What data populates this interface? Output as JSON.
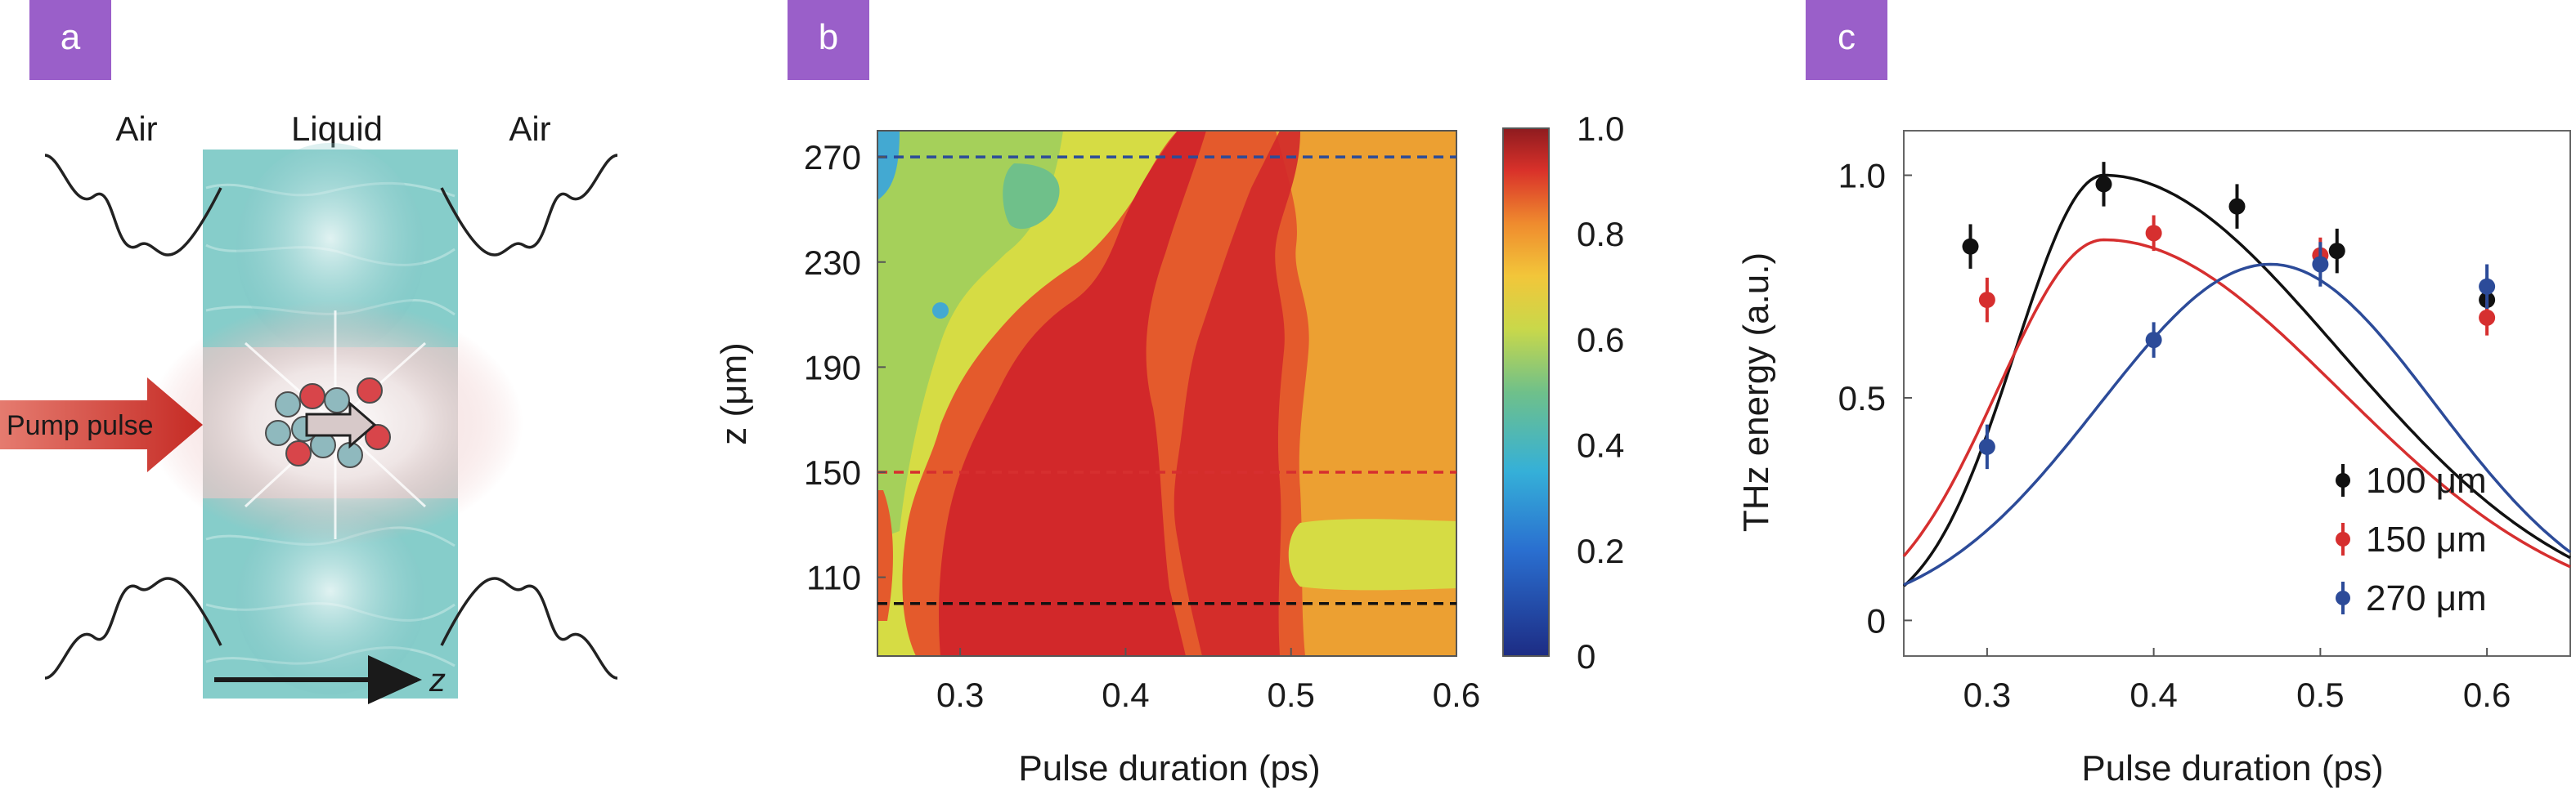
{
  "panels": {
    "a": {
      "label": "a",
      "region_labels": [
        "Air",
        "Liquid",
        "Air"
      ],
      "pump_label": "Pump pulse",
      "axis_label": "z"
    },
    "b": {
      "label": "b"
    },
    "c": {
      "label": "c"
    }
  },
  "colors": {
    "panel_tag": "#9a5fc9",
    "black_series": "#111111",
    "red_series": "#d62f2f",
    "blue_series": "#2c4b99",
    "liquid": "#7fc9c6",
    "pump": "#d9342c"
  },
  "chart_data": [
    {
      "panel": "b",
      "type": "heatmap",
      "xlabel": "Pulse duration (ps)",
      "ylabel": "z (μm)",
      "x_ticks": [
        0.3,
        0.4,
        0.5,
        0.6
      ],
      "x_tick_labels": [
        "0.3",
        "0.4",
        "0.5",
        "0.6"
      ],
      "y_ticks": [
        110,
        150,
        190,
        230,
        270
      ],
      "y_tick_labels": [
        "110",
        "150",
        "190",
        "230",
        "270"
      ],
      "xlim": [
        0.25,
        0.6
      ],
      "ylim": [
        80,
        280
      ],
      "colorbar": {
        "range": [
          0,
          1.0
        ],
        "ticks": [
          "0",
          "0.2",
          "0.4",
          "0.6",
          "0.8",
          "1.0"
        ]
      },
      "reference_lines": [
        {
          "z": 270,
          "color": "#2c4b99",
          "style": "dashed"
        },
        {
          "z": 150,
          "color": "#d62f2f",
          "style": "dashed"
        },
        {
          "z": 100,
          "color": "#111111",
          "style": "dashed"
        }
      ],
      "levels": [
        {
          "value": 0.95,
          "color": "#d2282a"
        },
        {
          "value": 0.85,
          "color": "#e45a2c"
        },
        {
          "value": 0.8,
          "color": "#eca032"
        },
        {
          "value": 0.7,
          "color": "#d6dc44"
        },
        {
          "value": 0.55,
          "color": "#a5d05a"
        },
        {
          "value": 0.45,
          "color": "#6fc08a"
        },
        {
          "value": 0.3,
          "color": "#43a9d2"
        }
      ]
    },
    {
      "panel": "c",
      "type": "scatter",
      "xlabel": "Pulse duration (ps)",
      "ylabel": "THz energy (a.u.)",
      "xlim": [
        0.25,
        0.65
      ],
      "ylim": [
        -0.08,
        1.1
      ],
      "x_ticks": [
        "0.3",
        "0.4",
        "0.5",
        "0.6"
      ],
      "y_ticks": [
        "0",
        "0.5",
        "1.0"
      ],
      "legend_position": "bottom-right",
      "series": [
        {
          "name": "100 μm",
          "color": "#111111",
          "points": [
            [
              0.29,
              0.84,
              0.05
            ],
            [
              0.37,
              0.98,
              0.05
            ],
            [
              0.45,
              0.93,
              0.05
            ],
            [
              0.51,
              0.83,
              0.05
            ],
            [
              0.6,
              0.72,
              0.05
            ]
          ],
          "fit": {
            "peak_x": 0.37,
            "peak_y": 1.0,
            "width_left": 0.075,
            "width_right": 0.2
          }
        },
        {
          "name": "150 μm",
          "color": "#d62f2f",
          "points": [
            [
              0.3,
              0.72,
              0.05
            ],
            [
              0.4,
              0.87,
              0.04
            ],
            [
              0.5,
              0.82,
              0.04
            ],
            [
              0.6,
              0.68,
              0.04
            ]
          ],
          "fit": {
            "peak_x": 0.37,
            "peak_y": 0.855,
            "width_left": 0.09,
            "width_right": 0.2
          }
        },
        {
          "name": "270 μm",
          "color": "#2c4b99",
          "points": [
            [
              0.3,
              0.39,
              0.05
            ],
            [
              0.4,
              0.63,
              0.04
            ],
            [
              0.5,
              0.8,
              0.05
            ],
            [
              0.6,
              0.75,
              0.05
            ]
          ],
          "fit": {
            "peak_x": 0.47,
            "peak_y": 0.8,
            "width_left": 0.145,
            "width_right": 0.14
          }
        }
      ]
    }
  ]
}
